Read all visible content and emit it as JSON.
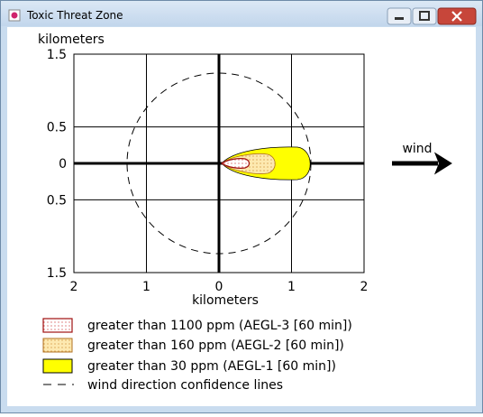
{
  "window": {
    "title": "Toxic Threat Zone"
  },
  "chart": {
    "y_axis_label": "kilometers",
    "x_axis_label": "kilometers",
    "xlim": [
      -2,
      2
    ],
    "ylim": [
      -1.5,
      1.5
    ],
    "xticks": [
      {
        "value": -2,
        "label": "2"
      },
      {
        "value": -1,
        "label": "1"
      },
      0,
      1,
      2
    ],
    "yticks": [
      1.5,
      0.5,
      0,
      {
        "value": -0.5,
        "label": "0.5"
      },
      {
        "value": -1.5,
        "label": "1.5"
      }
    ],
    "wind_label": "wind",
    "legend": [
      "greater than 1100 ppm (AEGL-3 [60 min])",
      "greater than 160 ppm (AEGL-2 [60 min])",
      "greater than 30 ppm (AEGL-1 [60 min])",
      "wind direction confidence lines"
    ]
  }
}
